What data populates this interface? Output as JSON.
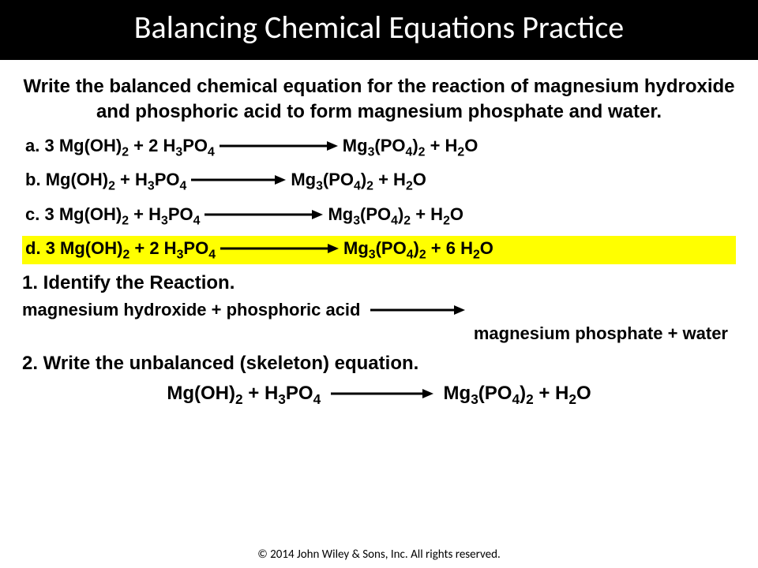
{
  "colors": {
    "bg": "#ffffff",
    "title_bg": "#000000",
    "title_fg": "#ffffff",
    "text": "#000000",
    "highlight": "#ffff00",
    "arrow_stroke": "#000000"
  },
  "typography": {
    "title_fontsize": 40,
    "prompt_fontsize": 24,
    "option_fontsize": 22,
    "option_weight": 700,
    "footer_fontsize": 15
  },
  "title": "Balancing Chemical Equations Practice",
  "prompt": "Write the balanced chemical equation for the reaction of magnesium hydroxide and phosphoric acid to form magnesium phosphate and water.",
  "options": [
    {
      "key": "a.",
      "reactants": "3 Mg(OH)|2| + 2 H|3|PO|4|",
      "products": "Mg|3|(PO|4|)|2| + H|2|O",
      "arrow_len": 150,
      "highlight": false
    },
    {
      "key": "b.",
      "reactants": "Mg(OH)|2| + H|3|PO|4|",
      "products": "Mg|3|(PO|4|)|2| + H|2|O",
      "arrow_len": 120,
      "highlight": false
    },
    {
      "key": "c.",
      "reactants": "3 Mg(OH)|2| + H|3|PO|4|",
      "products": "Mg|3|(PO|4|)|2| + H|2|O",
      "arrow_len": 150,
      "highlight": false
    },
    {
      "key": "d.",
      "reactants": "3 Mg(OH)|2| + 2 H|3|PO|4|",
      "products": "Mg|3|(PO|4|)|2| + 6 H|2|O",
      "arrow_len": 150,
      "highlight": true
    }
  ],
  "step1": {
    "label": "1. Identify the Reaction.",
    "line1": "magnesium hydroxide  + phosphoric acid",
    "line2": "magnesium phosphate + water",
    "arrow_len": 120
  },
  "step2": {
    "label": "2. Write the unbalanced (skeleton) equation.",
    "reactants": "Mg(OH)|2| + H|3|PO|4|",
    "products": "Mg|3|(PO|4|)|2| + H|2|O",
    "arrow_len": 130
  },
  "footer": "© 2014 John Wiley & Sons, Inc. All rights reserved."
}
